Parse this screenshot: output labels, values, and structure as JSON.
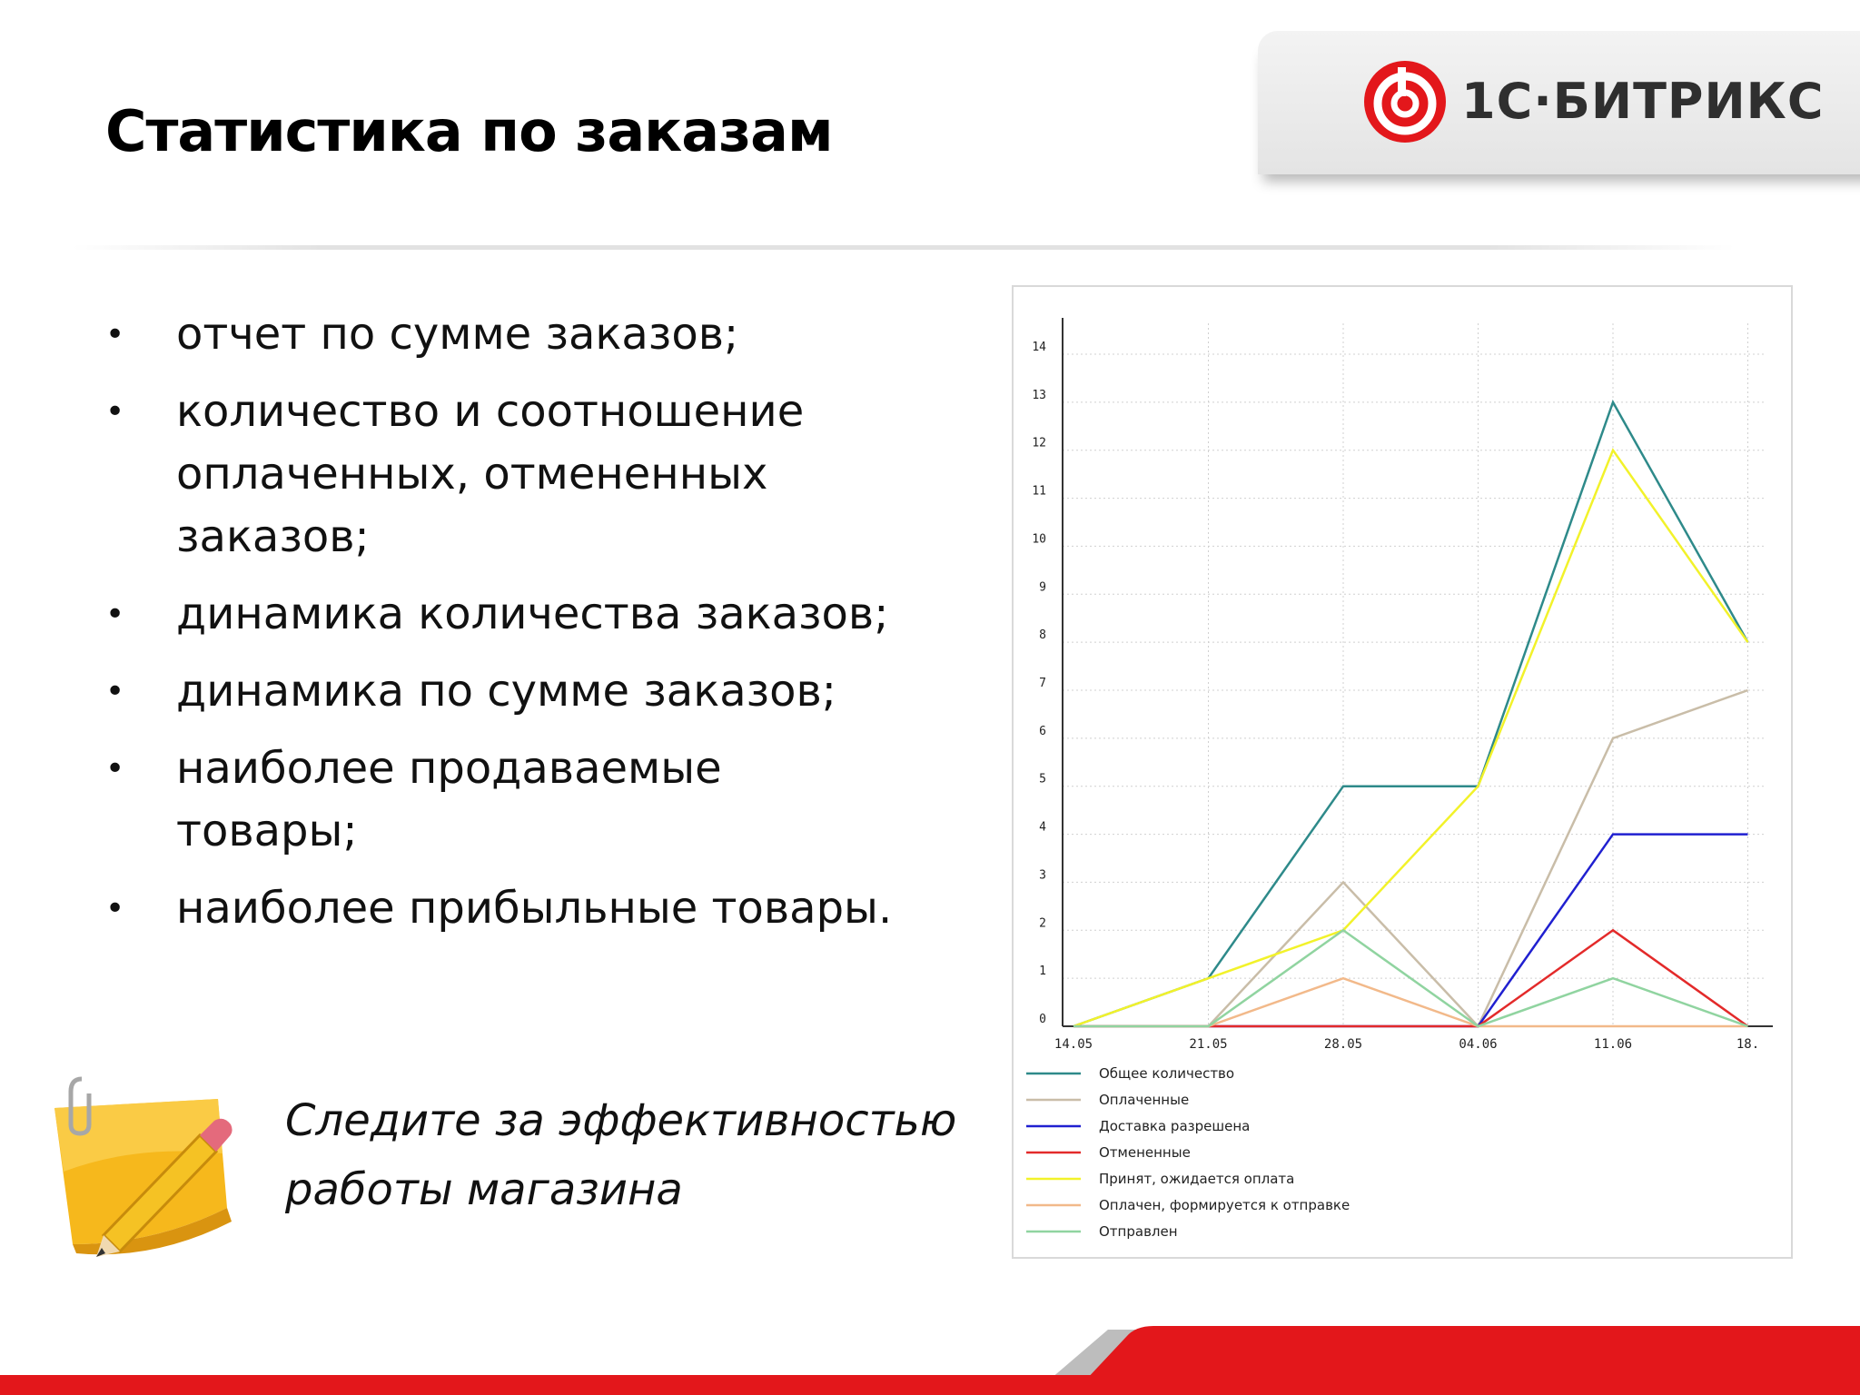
{
  "slide": {
    "title": "Статистика по заказам",
    "logo_text": "1С·БИТРИКС",
    "bullets": [
      "отчет по сумме заказов;",
      "количество и соотношение оплаченных, отмененных заказов;",
      "динамика количества заказов;",
      "динамика по сумме заказов;",
      "наиболее продаваемые товары;",
      "наиболее прибыльные товары."
    ],
    "bullet_marker": "•",
    "note": "Следите за эффективностью работы магазина"
  },
  "colors": {
    "brand_red": "#e3171b",
    "grid": "#d0d0d0"
  },
  "chart_data": {
    "type": "line",
    "x": [
      "14.05",
      "21.05",
      "28.05",
      "04.06",
      "11.06",
      "18."
    ],
    "ylim": [
      0,
      14
    ],
    "yticks": [
      0,
      1,
      2,
      3,
      4,
      5,
      6,
      7,
      8,
      9,
      10,
      11,
      12,
      13,
      14
    ],
    "grid": true,
    "legend_position": "bottom",
    "series": [
      {
        "name": "Общее количество",
        "color": "#2e8a8a",
        "values": [
          0,
          1,
          5,
          5,
          13,
          8
        ]
      },
      {
        "name": "Оплаченные",
        "color": "#c9bda8",
        "values": [
          0,
          0,
          3,
          0,
          6,
          7
        ]
      },
      {
        "name": "Доставка разрешена",
        "color": "#2020d0",
        "values": [
          0,
          0,
          0,
          0,
          4,
          4
        ]
      },
      {
        "name": "Отмененные",
        "color": "#e32a2a",
        "values": [
          0,
          0,
          0,
          0,
          2,
          0
        ]
      },
      {
        "name": "Принят, ожидается оплата",
        "color": "#f2f22a",
        "values": [
          0,
          1,
          2,
          5,
          12,
          8
        ]
      },
      {
        "name": "Оплачен, формируется к отправке",
        "color": "#f2b98a",
        "values": [
          0,
          0,
          1,
          0,
          0,
          0
        ]
      },
      {
        "name": "Отправлен",
        "color": "#90d4a0",
        "values": [
          0,
          0,
          2,
          0,
          1,
          0
        ]
      }
    ]
  }
}
